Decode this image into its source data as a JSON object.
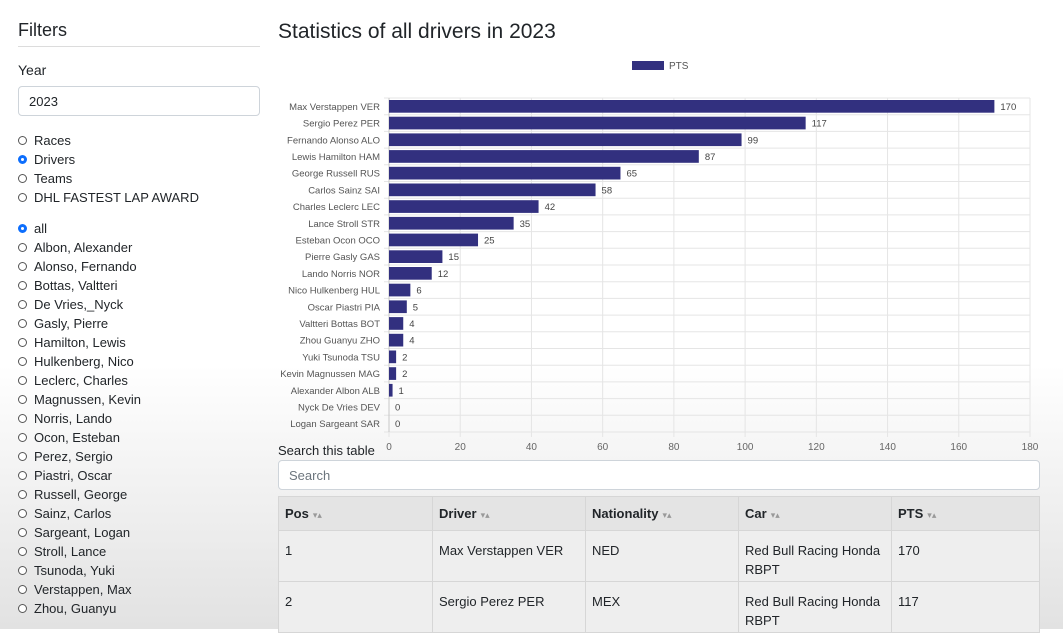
{
  "sidebar": {
    "title": "Filters",
    "year_label": "Year",
    "year_value": "2023",
    "view_options": [
      {
        "label": "Races",
        "checked": false
      },
      {
        "label": "Drivers",
        "checked": true
      },
      {
        "label": "Teams",
        "checked": false
      },
      {
        "label": "DHL FASTEST LAP AWARD",
        "checked": false
      }
    ],
    "driver_options": [
      {
        "label": "all",
        "checked": true
      },
      {
        "label": "Albon, Alexander",
        "checked": false
      },
      {
        "label": "Alonso, Fernando",
        "checked": false
      },
      {
        "label": "Bottas, Valtteri",
        "checked": false
      },
      {
        "label": "De Vries,_Nyck",
        "checked": false
      },
      {
        "label": "Gasly, Pierre",
        "checked": false
      },
      {
        "label": "Hamilton, Lewis",
        "checked": false
      },
      {
        "label": "Hulkenberg, Nico",
        "checked": false
      },
      {
        "label": "Leclerc, Charles",
        "checked": false
      },
      {
        "label": "Magnussen, Kevin",
        "checked": false
      },
      {
        "label": "Norris, Lando",
        "checked": false
      },
      {
        "label": "Ocon, Esteban",
        "checked": false
      },
      {
        "label": "Perez, Sergio",
        "checked": false
      },
      {
        "label": "Piastri, Oscar",
        "checked": false
      },
      {
        "label": "Russell, George",
        "checked": false
      },
      {
        "label": "Sainz, Carlos",
        "checked": false
      },
      {
        "label": "Sargeant, Logan",
        "checked": false
      },
      {
        "label": "Stroll, Lance",
        "checked": false
      },
      {
        "label": "Tsunoda, Yuki",
        "checked": false
      },
      {
        "label": "Verstappen, Max",
        "checked": false
      },
      {
        "label": "Zhou, Guanyu",
        "checked": false
      }
    ]
  },
  "main": {
    "title": "Statistics of all drivers in 2023",
    "search_label": "Search this table",
    "search_placeholder": "Search"
  },
  "chart_data": {
    "type": "bar",
    "orientation": "horizontal",
    "categories": [
      "Max Verstappen VER",
      "Sergio Perez PER",
      "Fernando Alonso ALO",
      "Lewis Hamilton HAM",
      "George Russell RUS",
      "Carlos Sainz SAI",
      "Charles Leclerc LEC",
      "Lance Stroll STR",
      "Esteban Ocon OCO",
      "Pierre Gasly GAS",
      "Lando Norris NOR",
      "Nico Hulkenberg HUL",
      "Oscar Piastri PIA",
      "Valtteri Bottas BOT",
      "Zhou Guanyu ZHO",
      "Yuki Tsunoda TSU",
      "Kevin Magnussen MAG",
      "Alexander Albon ALB",
      "Nyck De Vries DEV",
      "Logan Sargeant SAR"
    ],
    "series": [
      {
        "name": "PTS",
        "values": [
          170,
          117,
          99,
          87,
          65,
          58,
          42,
          35,
          25,
          15,
          12,
          6,
          5,
          4,
          4,
          2,
          2,
          1,
          0,
          0
        ],
        "color": "#32307f"
      }
    ],
    "xlim": [
      0,
      180
    ],
    "xticks": [
      0,
      20,
      40,
      60,
      80,
      100,
      120,
      140,
      160,
      180
    ],
    "grid": true,
    "legend": "top-center",
    "data_labels": true
  },
  "table": {
    "columns": [
      "Pos",
      "Driver",
      "Nationality",
      "Car",
      "PTS"
    ],
    "sort_icon": "sort-arrows-icon",
    "rows": [
      [
        "1",
        "Max Verstappen VER",
        "NED",
        "Red Bull Racing Honda RBPT",
        "170"
      ],
      [
        "2",
        "Sergio Perez PER",
        "MEX",
        "Red Bull Racing Honda RBPT",
        "117"
      ]
    ]
  }
}
